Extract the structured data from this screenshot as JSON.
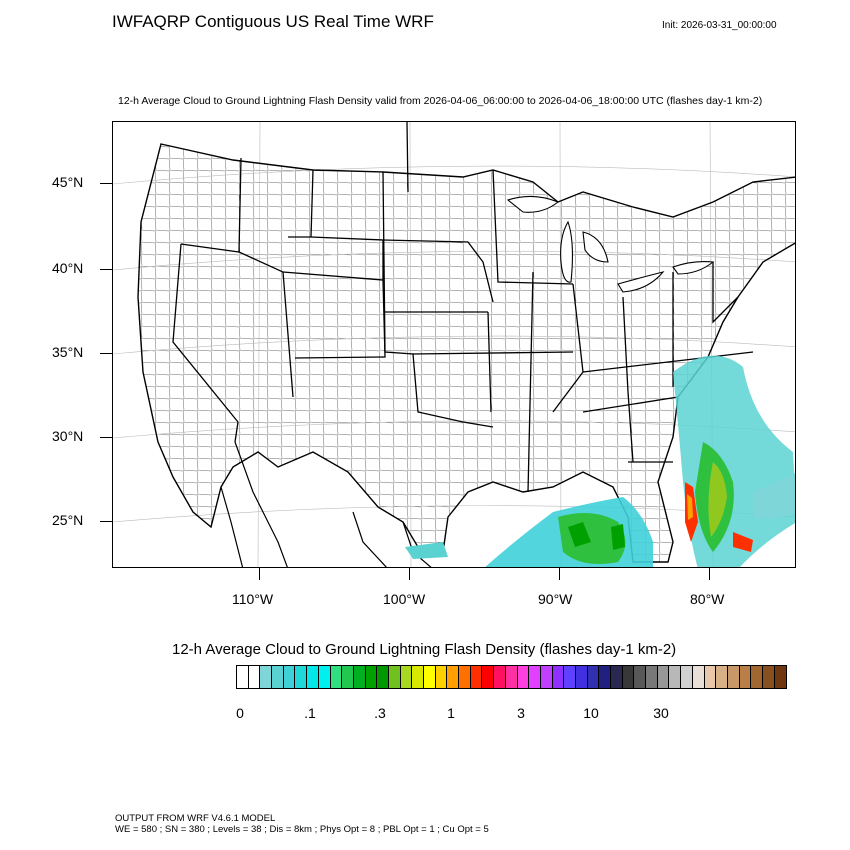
{
  "header": {
    "title": "IWFAQRP Contiguous US Real Time WRF",
    "init": "Init: 2026-03-31_00:00:00",
    "plot_title": "12-h Average Cloud to Ground Lightning Flash Density valid from 2026-04-06_06:00:00 to 2026-04-06_18:00:00 UTC   (flashes day-1 km-2)"
  },
  "map": {
    "projection": "Lambert Conformal",
    "lat_labels": [
      "45°N",
      "40°N",
      "35°N",
      "30°N",
      "25°N"
    ],
    "lon_labels": [
      "110°W",
      "100°W",
      "90°W",
      "80°W"
    ],
    "features": [
      "state boundaries",
      "county boundaries",
      "coastlines",
      "lat/lon gridlines"
    ]
  },
  "colorbar": {
    "title": "12-h Average Cloud to Ground Lightning Flash Density  (flashes day-1 km-2)",
    "tick_labels": [
      "0",
      ".1",
      ".3",
      "1",
      "3",
      "10",
      "30"
    ],
    "colors": [
      "#ffffff",
      "#ffffff",
      "#7fd6d9",
      "#5ad2d2",
      "#3fd0d8",
      "#20d8d8",
      "#00e8e8",
      "#00f0f0",
      "#30e080",
      "#20c850",
      "#00b020",
      "#00a000",
      "#009800",
      "#70c020",
      "#a8d820",
      "#d8e800",
      "#ffff00",
      "#ffd000",
      "#ffa000",
      "#ff7000",
      "#ff3000",
      "#ff0000",
      "#ff1060",
      "#ff30a0",
      "#ff40e0",
      "#e040ff",
      "#c040ff",
      "#9030ff",
      "#6040ff",
      "#4030e0",
      "#3030b0",
      "#202080",
      "#282850",
      "#383838",
      "#585858",
      "#787878",
      "#989898",
      "#b8b8b8",
      "#d0d0d0",
      "#e8e0d8",
      "#e8c8a8",
      "#d8b088",
      "#c89868",
      "#b88048",
      "#a06830",
      "#885020",
      "#703810"
    ]
  },
  "footer": {
    "line1": "OUTPUT FROM WRF V4.6.1 MODEL",
    "line2": "WE = 580 ; SN = 380 ; Levels = 38 ; Dis = 8km ; Phys Opt = 8 ; PBL Opt = 1 ; Cu Opt = 5"
  }
}
